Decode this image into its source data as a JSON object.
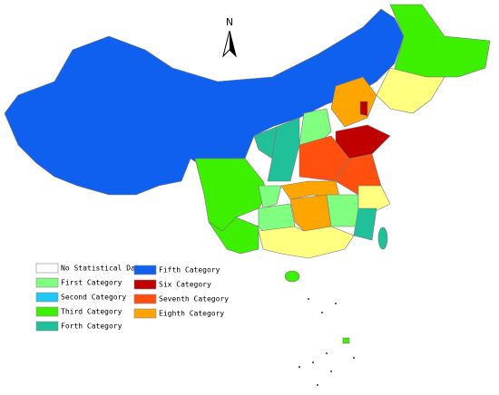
{
  "north_label": "N",
  "legend": {
    "items": [
      {
        "label": "No Statistical Data",
        "color": "#ffffff"
      },
      {
        "label": "First Category",
        "color": "#80ff80"
      },
      {
        "label": "Second Category",
        "color": "#1ec8f5"
      },
      {
        "label": "Third Category",
        "color": "#3cf000"
      },
      {
        "label": "Forth Category",
        "color": "#20c09a"
      },
      {
        "label": "Fifth Category",
        "color": "#1060f0"
      },
      {
        "label": "Six Category",
        "color": "#c00000"
      },
      {
        "label": "Seventh Category",
        "color": "#ff5010"
      },
      {
        "label": "Eighth Category",
        "color": "#ffa500"
      }
    ]
  }
}
